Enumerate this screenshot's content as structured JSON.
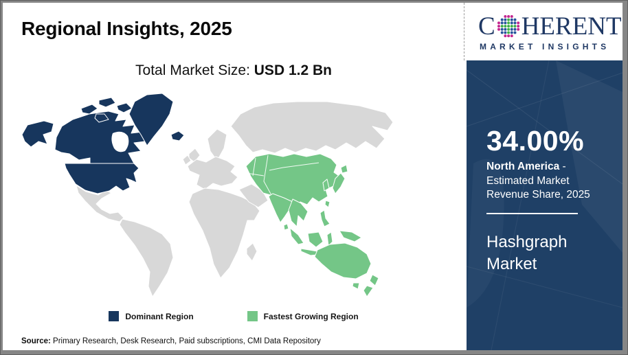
{
  "colors": {
    "navy": "#17365d",
    "green": "#74c687",
    "gray_land": "#d8d8d8",
    "panel": "#1f4066",
    "logo_navy": "#1f3864"
  },
  "slide": {
    "title": "Regional Insights, 2025",
    "market_size_label": "Total Market Size: ",
    "market_size_value": "USD 1.2 Bn",
    "source_label": "Source:",
    "source_text": " Primary Research, Desk Research, Paid subscriptions, CMI Data Repository"
  },
  "legend": {
    "dominant_label": "Dominant Region",
    "fastest_label": "Fastest Growing Region"
  },
  "sidebar": {
    "logo_c": "C",
    "logo_rest": "HERENT",
    "logo_subtitle": "MARKET INSIGHTS",
    "stat_value": "34.00%",
    "stat_region": "North America",
    "stat_suffix": " - Estimated Market Revenue Share, 2025",
    "market_name": "Hashgraph Market"
  },
  "chart_data": {
    "type": "choropleth-world-map",
    "title": "Regional Insights, 2025",
    "total_market_size": "USD 1.2 Bn",
    "regions": [
      {
        "name": "North America",
        "status": "Dominant Region",
        "estimated_market_revenue_share_2025": 34.0,
        "color": "#17365d",
        "countries_shaded": [
          "United States",
          "Canada",
          "Greenland",
          "Iceland"
        ]
      },
      {
        "name": "Asia Pacific",
        "status": "Fastest Growing Region",
        "color": "#74c687",
        "countries_shaded": [
          "Kazakhstan",
          "Central Asia",
          "China",
          "Mongolia",
          "India",
          "Southeast Asia",
          "Indonesia",
          "Philippines",
          "Japan",
          "South Korea",
          "Australia",
          "New Zealand",
          "Papua New Guinea"
        ]
      },
      {
        "name": "Rest of World",
        "status": "Not highlighted",
        "color": "#d8d8d8"
      }
    ],
    "legend_position": "bottom-center",
    "market": "Hashgraph Market"
  }
}
